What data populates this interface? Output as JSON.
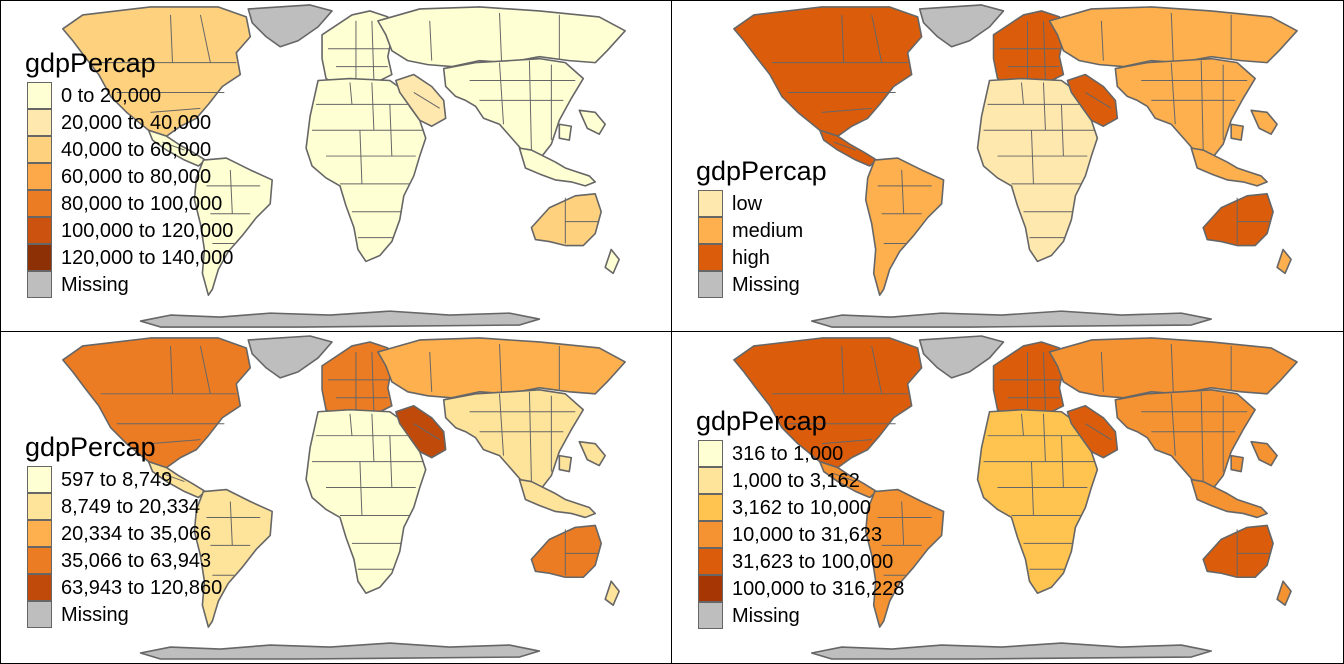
{
  "panels": [
    {
      "legend_title": "gdpPercap",
      "classes": [
        {
          "label": "0 to 20,000",
          "color": "#FFFFD4"
        },
        {
          "label": "20,000 to 40,000",
          "color": "#FEE8AE"
        },
        {
          "label": "40,000 to 60,000",
          "color": "#FED17E"
        },
        {
          "label": "60,000 to 80,000",
          "color": "#FDA94A"
        },
        {
          "label": "80,000 to 100,000",
          "color": "#EC7C23"
        },
        {
          "label": "100,000 to 120,000",
          "color": "#CC530F"
        },
        {
          "label": "120,000 to 140,000",
          "color": "#8E3005"
        },
        {
          "label": "Missing",
          "color": "#BEBEBE"
        }
      ],
      "region_class": {
        "na": 2,
        "greenland": -1,
        "ca": 0,
        "sa": 0,
        "europe": 0,
        "russia": 0,
        "africa": 0,
        "arabia": 1,
        "asia": 0,
        "australia": 2,
        "antarctica": -1,
        "islands": 0
      }
    },
    {
      "legend_title": "gdpPercap",
      "classes": [
        {
          "label": "low",
          "color": "#FEE8AE"
        },
        {
          "label": "medium",
          "color": "#FDB04D"
        },
        {
          "label": "high",
          "color": "#DB5D0B"
        },
        {
          "label": "Missing",
          "color": "#BEBEBE"
        }
      ],
      "region_class": {
        "na": 2,
        "greenland": -1,
        "ca": 2,
        "sa": 1,
        "europe": 2,
        "russia": 1,
        "africa": 0,
        "arabia": 2,
        "asia": 1,
        "australia": 2,
        "antarctica": -1,
        "islands": 1
      }
    },
    {
      "legend_title": "gdpPercap",
      "classes": [
        {
          "label": "597 to 8,749",
          "color": "#FFFFD4"
        },
        {
          "label": "8,749 to 20,334",
          "color": "#FEE39A"
        },
        {
          "label": "20,334 to 35,066",
          "color": "#FDB04D"
        },
        {
          "label": "35,066 to 63,943",
          "color": "#EC7C23"
        },
        {
          "label": "63,943 to 120,860",
          "color": "#C04A0A"
        },
        {
          "label": "Missing",
          "color": "#BEBEBE"
        }
      ],
      "region_class": {
        "na": 3,
        "greenland": -1,
        "ca": 1,
        "sa": 1,
        "europe": 3,
        "russia": 2,
        "africa": 0,
        "arabia": 4,
        "asia": 1,
        "australia": 3,
        "antarctica": -1,
        "islands": 1
      }
    },
    {
      "legend_title": "gdpPercap",
      "classes": [
        {
          "label": "316 to 1,000",
          "color": "#FFFFD4"
        },
        {
          "label": "1,000 to 3,162",
          "color": "#FEE39A"
        },
        {
          "label": "3,162 to 10,000",
          "color": "#FEC44F"
        },
        {
          "label": "10,000 to 31,623",
          "color": "#F59332"
        },
        {
          "label": "31,623 to 100,000",
          "color": "#DB5D0B"
        },
        {
          "label": "100,000 to 316,228",
          "color": "#A63603"
        },
        {
          "label": "Missing",
          "color": "#BEBEBE"
        }
      ],
      "region_class": {
        "na": 4,
        "greenland": -1,
        "ca": 3,
        "sa": 3,
        "europe": 4,
        "russia": 3,
        "africa": 2,
        "arabia": 4,
        "asia": 3,
        "australia": 4,
        "antarctica": -1,
        "islands": 3
      }
    }
  ]
}
